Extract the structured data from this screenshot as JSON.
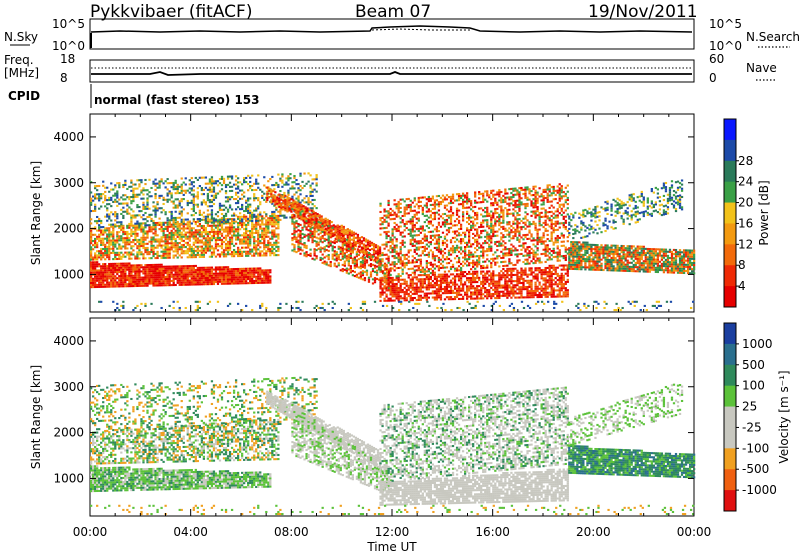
{
  "header": {
    "station": "Pykkvibaer (fitACF)",
    "beam": "Beam 07",
    "date": "19/Nov/2011"
  },
  "top_panels": {
    "nsky_label": "N.Sky",
    "nsearch_label": "N.Search",
    "nsky_ticks": [
      "10^5",
      "10^0"
    ],
    "nsearch_ticks": [
      "10^5",
      "10^0"
    ],
    "freq_label": "Freq.",
    "freq_unit": "[MHz]",
    "freq_ticks": [
      "18",
      "8"
    ],
    "nave_label": "Nave",
    "nave_ticks": [
      "60",
      "0"
    ],
    "cpid_label": "CPID",
    "cpid_text": "normal (fast stereo) 153"
  },
  "chart_data": [
    {
      "type": "heatmap",
      "name": "power",
      "ylabel": "Slant Range [km]",
      "xlabel": "Time UT",
      "x_ticks": [
        "00:00",
        "04:00",
        "08:00",
        "12:00",
        "16:00",
        "20:00",
        "00:00"
      ],
      "xlim_hours": [
        0,
        24
      ],
      "ylim": [
        180,
        4500
      ],
      "y_ticks": [
        1000,
        2000,
        3000,
        4000
      ],
      "colorbar": {
        "label": "Power [dB]",
        "ticks": [
          "4",
          "8",
          "12",
          "16",
          "20",
          "24",
          "28"
        ],
        "colors": [
          "#0a18ff",
          "#1c4aa8",
          "#2a7a5a",
          "#3aa046",
          "#f2c21a",
          "#f39a10",
          "#f26a0a",
          "#ef2a05",
          "#e60000"
        ]
      }
    },
    {
      "type": "heatmap",
      "name": "velocity",
      "ylabel": "Slant Range [km]",
      "xlabel": "Time UT",
      "x_ticks": [
        "00:00",
        "04:00",
        "08:00",
        "12:00",
        "16:00",
        "20:00",
        "00:00"
      ],
      "xlim_hours": [
        0,
        24
      ],
      "ylim": [
        180,
        4500
      ],
      "y_ticks": [
        1000,
        2000,
        3000,
        4000
      ],
      "colorbar": {
        "label": "Velocity [m s⁻¹]",
        "ticks": [
          "1000",
          "500",
          "100",
          "25",
          "-25",
          "-100",
          "-500",
          "-1000"
        ],
        "colors": [
          "#1b3fa0",
          "#2a6f8e",
          "#2f8a5c",
          "#5cc23a",
          "#c8c8c0",
          "#c8c8c0",
          "#f0a020",
          "#f06010",
          "#e01010"
        ]
      }
    }
  ],
  "colors": {
    "power_high": "#e60000",
    "power_mid": "#f39a10",
    "velocity_ground": "#c8c8c0",
    "velocity_green": "#5cc23a"
  }
}
